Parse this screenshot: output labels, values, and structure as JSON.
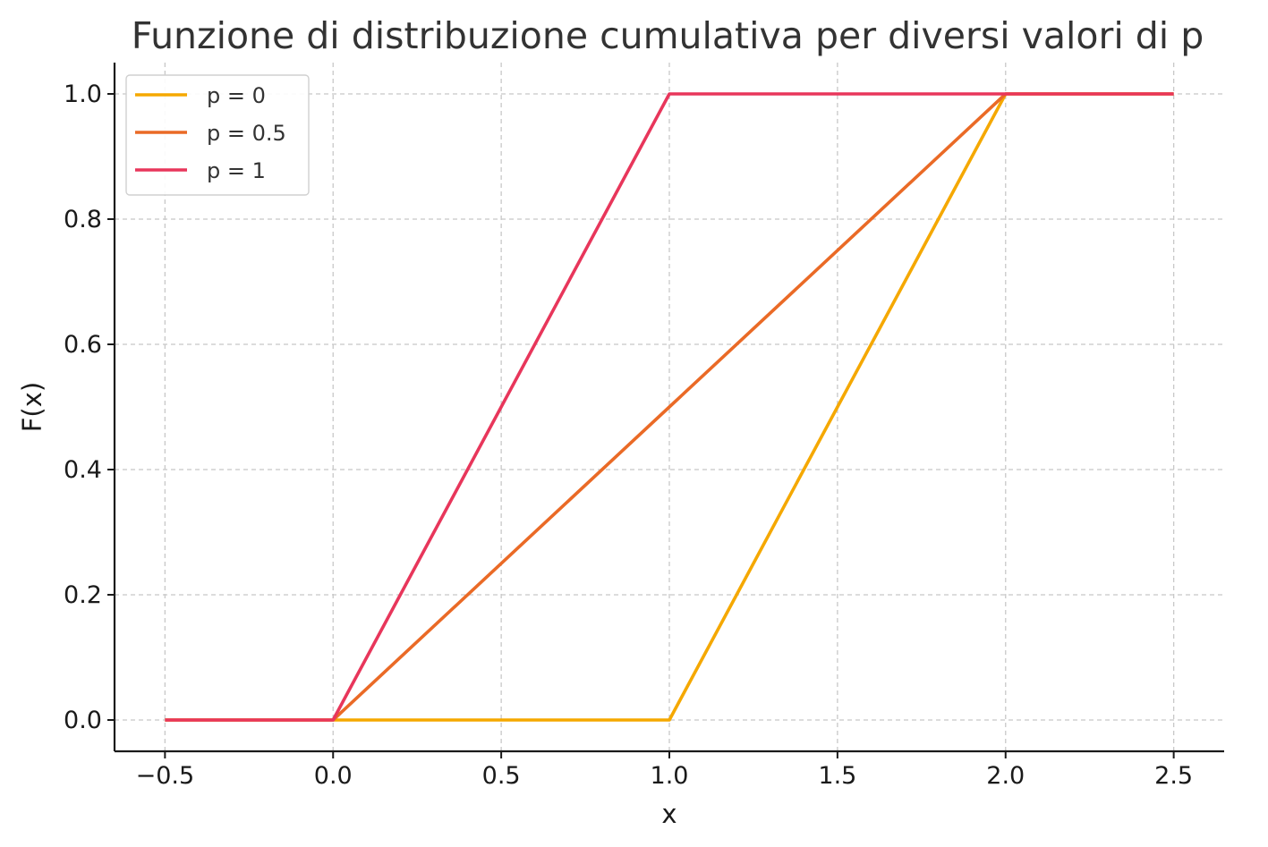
{
  "chart_data": {
    "type": "line",
    "title": "Funzione di distribuzione cumulativa per diversi valori di p",
    "xlabel": "x",
    "ylabel": "F(x)",
    "xlim": [
      -0.65,
      2.65
    ],
    "ylim": [
      -0.05,
      1.05
    ],
    "xticks": [
      -0.5,
      0.0,
      0.5,
      1.0,
      1.5,
      2.0,
      2.5
    ],
    "xtick_labels": [
      "−0.5",
      "0.0",
      "0.5",
      "1.0",
      "1.5",
      "2.0",
      "2.5"
    ],
    "yticks": [
      0.0,
      0.2,
      0.4,
      0.6,
      0.8,
      1.0
    ],
    "ytick_labels": [
      "0.0",
      "0.2",
      "0.4",
      "0.6",
      "0.8",
      "1.0"
    ],
    "grid": true,
    "legend_position": "top-left",
    "series": [
      {
        "name": "p = 0",
        "color": "#F5A800",
        "x": [
          -0.5,
          0.0,
          1.0,
          2.0,
          2.5
        ],
        "y": [
          0.0,
          0.0,
          0.0,
          1.0,
          1.0
        ]
      },
      {
        "name": "p = 0.5",
        "color": "#EA6A26",
        "x": [
          -0.5,
          0.0,
          1.0,
          2.0,
          2.5
        ],
        "y": [
          0.0,
          0.0,
          0.5,
          1.0,
          1.0
        ]
      },
      {
        "name": "p = 1",
        "color": "#E8365B",
        "x": [
          -0.5,
          0.0,
          1.0,
          2.0,
          2.5
        ],
        "y": [
          0.0,
          0.0,
          1.0,
          1.0,
          1.0
        ]
      }
    ]
  }
}
